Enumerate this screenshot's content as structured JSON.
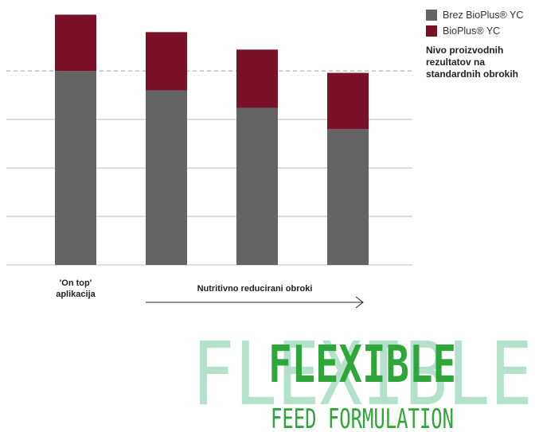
{
  "chart_data": {
    "type": "bar",
    "stacked": true,
    "categories": [
      "",
      "",
      "",
      ""
    ],
    "series": [
      {
        "name": "Brez BioPlus® YC",
        "values": [
          100,
          90,
          81,
          70
        ],
        "color": "#646464"
      },
      {
        "name": "BioPlus® YC",
        "values": [
          29,
          30,
          30,
          29
        ],
        "color": "#7a1128"
      }
    ],
    "reference_line": {
      "value": 100,
      "style": "dashed"
    },
    "ylim": [
      0,
      130
    ],
    "gridlines": [
      0,
      25,
      50,
      75
    ],
    "legend_position": "top-right",
    "legend_note": "Nivo proizvodnih rezultatov na standardnih obrokih"
  },
  "x_annotations": {
    "first": "'On top' aplikacija",
    "arrow_label": "Nutritivno reducirani obroki"
  },
  "logo": {
    "background_word": "FLEXIBLE",
    "word": "FLEXIBLE",
    "subtitle": "FEED FORMULATION",
    "color": "#2fa63a",
    "ghost_color": "#a7dcc0"
  }
}
